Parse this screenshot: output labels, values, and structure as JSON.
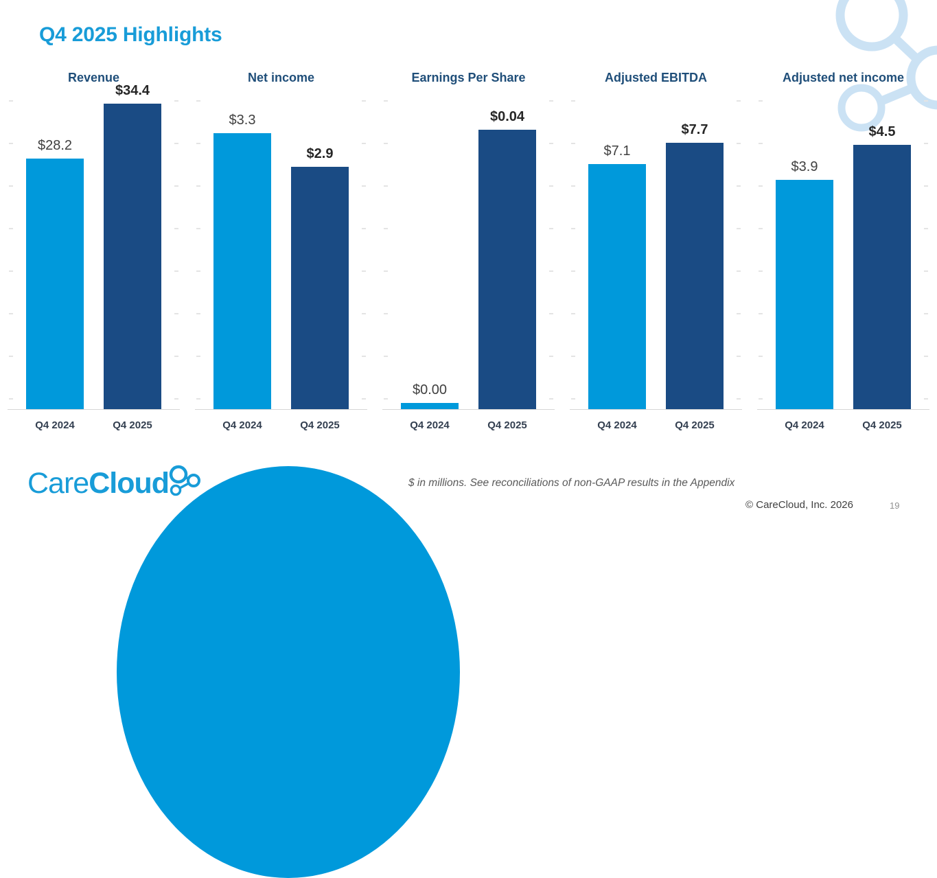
{
  "slide": {
    "title": "Q4 2025 Highlights",
    "footnote": "$ in millions. See reconciliations of non-GAAP results in the Appendix",
    "copyright": "© CareCloud, Inc. 2026",
    "page_number": "19"
  },
  "logo": {
    "care": "Care",
    "cloud": "Cloud",
    "mark_icon": "molecule-icon"
  },
  "decorations": {
    "top_right_icon": "molecule-icon",
    "bottom_shape": "blue-dome"
  },
  "colors": {
    "accent_blue": "#189CD8",
    "bar_light": "#0099DB",
    "bar_dark": "#1A4B84",
    "chart_title_navy": "#1F4E79",
    "axis_label": "#333F50",
    "value_label": "#404040",
    "value_label_emphasis": "#262626",
    "decoration_light_blue": "#CBE2F4",
    "footnote_gray": "#595959",
    "copyright_gray": "#3F3F3F",
    "page_gray": "#909090",
    "tick_gray": "#E4E4E4",
    "baseline_gray": "#D6D6D6"
  },
  "chart_data": [
    {
      "type": "bar",
      "title": "Revenue",
      "categories": [
        "Q4 2024",
        "Q4 2025"
      ],
      "values": [
        28.2,
        34.4
      ],
      "labels": [
        "$28.2",
        "$34.4"
      ],
      "ylim": [
        0,
        35.4
      ],
      "grid": false,
      "legend": "none"
    },
    {
      "type": "bar",
      "title": "Net income",
      "categories": [
        "Q4 2024",
        "Q4 2025"
      ],
      "values": [
        3.3,
        2.9
      ],
      "labels": [
        "$3.3",
        "$2.9"
      ],
      "ylim": [
        0,
        3.76
      ],
      "grid": false,
      "legend": "none"
    },
    {
      "type": "bar",
      "title": "Earnings Per Share",
      "categories": [
        "Q4 2024",
        "Q4 2025"
      ],
      "values": [
        0.0,
        0.04
      ],
      "labels": [
        "$0.00",
        "$0.04"
      ],
      "ylim": [
        0,
        0.045
      ],
      "grid": false,
      "legend": "none"
    },
    {
      "type": "bar",
      "title": "Adjusted EBITDA",
      "categories": [
        "Q4 2024",
        "Q4 2025"
      ],
      "values": [
        7.1,
        7.7
      ],
      "labels": [
        "$7.1",
        "$7.7"
      ],
      "ylim": [
        0,
        9.1
      ],
      "grid": false,
      "legend": "none"
    },
    {
      "type": "bar",
      "title": "Adjusted net income",
      "categories": [
        "Q4 2024",
        "Q4 2025"
      ],
      "values": [
        3.9,
        4.5
      ],
      "labels": [
        "$3.9",
        "$4.5"
      ],
      "ylim": [
        0,
        5.35
      ],
      "grid": false,
      "legend": "none"
    }
  ]
}
